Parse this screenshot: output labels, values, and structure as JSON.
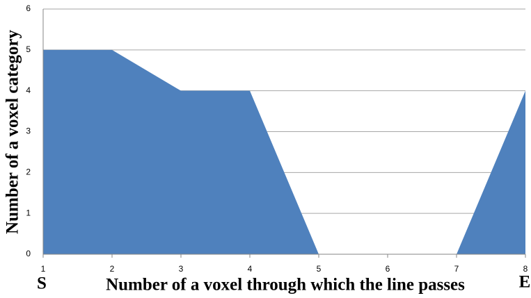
{
  "chart_data": {
    "type": "area",
    "x_label": "Number of a voxel through which the line passes",
    "y_label": "Number of a voxel category",
    "start_label": "S",
    "end_label": "E",
    "x": [
      1,
      2,
      3,
      4,
      5,
      6,
      7,
      8
    ],
    "series": [
      {
        "color": "#4f81bd",
        "values": [
          5,
          5,
          4,
          4,
          0,
          0,
          0,
          4
        ]
      }
    ],
    "xlim": [
      1,
      8
    ],
    "xticks": [
      1,
      2,
      3,
      4,
      5,
      6,
      7,
      8
    ],
    "ylim": [
      0,
      6
    ],
    "yticks": [
      0,
      1,
      2,
      3,
      4,
      5,
      6
    ],
    "grid": true
  }
}
